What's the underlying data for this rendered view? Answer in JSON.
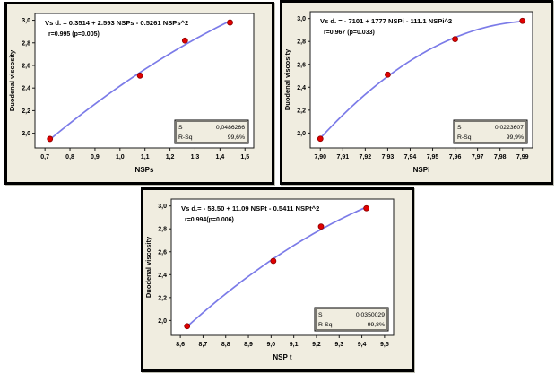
{
  "figure": {
    "description": "Three quadratic fitted-line plots of duodenal viscosity versus NSP fractions",
    "background": "#ffffff"
  },
  "colors": {
    "panel_bg": "#f0ede0",
    "panel_border": "#000000",
    "plot_bg": "#ffffff",
    "plot_frame": "#1a1a1a",
    "fit_line": "#7b7be8",
    "point_fill": "#e00000",
    "point_edge": "#8b0000",
    "text": "#000000",
    "stats_box_bg": "#f0ede0"
  },
  "chart_data": [
    {
      "type": "scatter",
      "fit": "quadratic",
      "title_line1": "Vs d. =  0.3514 + 2.593 NSPs   - 0.5261 NSPs^2",
      "title_line2": "r=0.995 (p=0.005)",
      "xlabel": "NSPs",
      "ylabel": "Duodenal viscosity",
      "x": [
        0.72,
        1.08,
        1.26,
        1.44
      ],
      "y": [
        1.95,
        2.51,
        2.82,
        2.98
      ],
      "xlim": [
        0.66,
        1.535
      ],
      "ylim": [
        1.87,
        3.06
      ],
      "x_tick_values": [
        0.7,
        0.8,
        0.9,
        1.0,
        1.1,
        1.2,
        1.3,
        1.4,
        1.5
      ],
      "x_tick_labels": [
        "0,7",
        "0,8",
        "0,9",
        "1,0",
        "1,1",
        "1,2",
        "1,3",
        "1,4",
        "1,5"
      ],
      "y_tick_values": [
        2.0,
        2.2,
        2.4,
        2.6,
        2.8,
        3.0
      ],
      "y_tick_labels": [
        "2,0",
        "2,2",
        "2,4",
        "2,6",
        "2,8",
        "3,0"
      ],
      "stats": {
        "s_label": "S",
        "s_value": "0,0486266",
        "rsq_label": "R-Sq",
        "rsq_value": "99,6%"
      }
    },
    {
      "type": "scatter",
      "fit": "quadratic",
      "title_line1": "Vs d. =  - 7101 + 1777 NSPi   - 111.1 NSPi^2",
      "title_line2": "r=0.967 (p=0.033)",
      "xlabel": "NSPi",
      "ylabel": "Duodenal viscosity",
      "x": [
        7.9,
        7.93,
        7.96,
        7.99
      ],
      "y": [
        1.95,
        2.51,
        2.82,
        2.98
      ],
      "xlim": [
        7.8955,
        7.9945
      ],
      "ylim": [
        1.87,
        3.06
      ],
      "x_tick_values": [
        7.9,
        7.91,
        7.92,
        7.93,
        7.94,
        7.95,
        7.96,
        7.97,
        7.98,
        7.99
      ],
      "x_tick_labels": [
        "7,90",
        "7,91",
        "7,92",
        "7,93",
        "7,94",
        "7,95",
        "7,96",
        "7,97",
        "7,98",
        "7,99"
      ],
      "y_tick_values": [
        2.0,
        2.2,
        2.4,
        2.6,
        2.8,
        3.0
      ],
      "y_tick_labels": [
        "2,0",
        "2,2",
        "2,4",
        "2,6",
        "2,8",
        "3,0"
      ],
      "stats": {
        "s_label": "S",
        "s_value": "0,0223607",
        "rsq_label": "R-Sq",
        "rsq_value": "99,9%"
      }
    },
    {
      "type": "scatter",
      "fit": "quadratic",
      "title_line1": "Vs d.=  - 53.50 + 11.09 NSPt    - 0.5411 NSPt^2",
      "title_line2": "r=0.994(p=0.006)",
      "xlabel": "NSP t",
      "ylabel": "Duodenal viscosity",
      "x": [
        8.63,
        9.01,
        9.22,
        9.42
      ],
      "y": [
        1.95,
        2.52,
        2.82,
        2.98
      ],
      "xlim": [
        8.56,
        9.54
      ],
      "ylim": [
        1.87,
        3.06
      ],
      "x_tick_values": [
        8.6,
        8.7,
        8.8,
        8.9,
        9.0,
        9.1,
        9.2,
        9.3,
        9.4,
        9.5
      ],
      "x_tick_labels": [
        "8,6",
        "8,7",
        "8,8",
        "8,9",
        "9,0",
        "9,1",
        "9,2",
        "9,3",
        "9,4",
        "9,5"
      ],
      "y_tick_values": [
        2.0,
        2.2,
        2.4,
        2.6,
        2.8,
        3.0
      ],
      "y_tick_labels": [
        "2,0",
        "2,2",
        "2,4",
        "2,6",
        "2,8",
        "3,0"
      ],
      "stats": {
        "s_label": "S",
        "s_value": "0,0350029",
        "rsq_label": "R-Sq",
        "rsq_value": "99,8%"
      }
    }
  ]
}
